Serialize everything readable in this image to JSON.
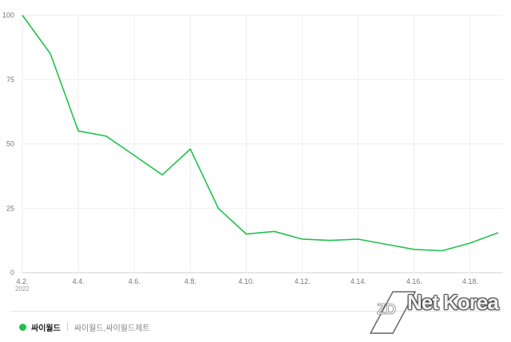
{
  "chart_data": {
    "type": "line",
    "x": [
      "4.2.",
      "4.3.",
      "4.4.",
      "4.5.",
      "4.6.",
      "4.7.",
      "4.8.",
      "4.9.",
      "4.10.",
      "4.11.",
      "4.12.",
      "4.13.",
      "4.14.",
      "4.15.",
      "4.16.",
      "4.17.",
      "4.18.",
      "4.19."
    ],
    "x_tick_labels": [
      "4.2.",
      "4.4.",
      "4.6.",
      "4.8.",
      "4.10.",
      "4.12.",
      "4.14.",
      "4.16.",
      "4.18."
    ],
    "x_sublabel": "2022",
    "series": [
      {
        "name": "싸이월드",
        "values": [
          100,
          85,
          55,
          53,
          45.5,
          38,
          48,
          25,
          15,
          16,
          13,
          12.5,
          13,
          11,
          9,
          8.5,
          11.5,
          15.5
        ]
      }
    ],
    "y_ticks": [
      0,
      25,
      50,
      75,
      100
    ],
    "ylim": [
      0,
      100
    ],
    "grid": true,
    "line_color": "#1fc24b"
  },
  "legend": {
    "series_name": "싸이월드",
    "keywords": "싸이월드,싸이월드제트"
  },
  "watermark": {
    "text": "Net Korea",
    "logo": "ZD"
  }
}
